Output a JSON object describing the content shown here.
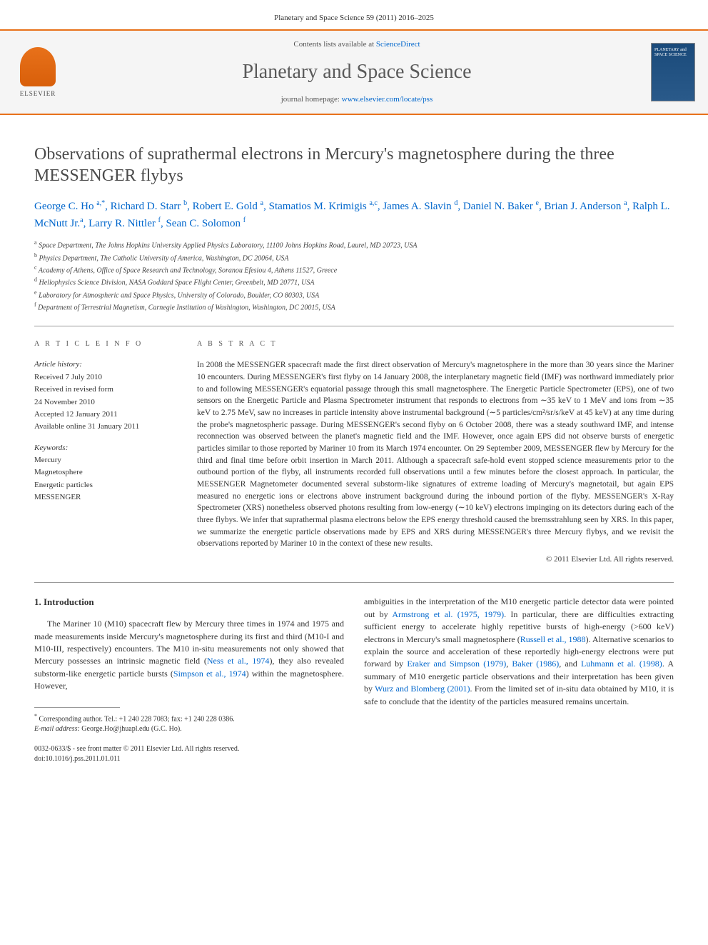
{
  "header": {
    "citation": "Planetary and Space Science 59 (2011) 2016–2025"
  },
  "banner": {
    "publisher_name": "ELSEVIER",
    "contents_prefix": "Contents lists available at ",
    "contents_link": "ScienceDirect",
    "journal_name": "Planetary and Space Science",
    "homepage_prefix": "journal homepage: ",
    "homepage_url": "www.elsevier.com/locate/pss",
    "cover_text": "PLANETARY and SPACE SCIENCE"
  },
  "article": {
    "title": "Observations of suprathermal electrons in Mercury's magnetosphere during the three MESSENGER flybys",
    "authors_html": "George C. Ho <sup>a,*</sup>, Richard D. Starr <sup>b</sup>, Robert E. Gold <sup>a</sup>, Stamatios M. Krimigis <sup>a,c</sup>, James A. Slavin <sup>d</sup>, Daniel N. Baker <sup>e</sup>, Brian J. Anderson <sup>a</sup>, Ralph L. McNutt Jr.<sup>a</sup>, Larry R. Nittler <sup>f</sup>, Sean C. Solomon <sup>f</sup>",
    "affiliations": [
      {
        "sup": "a",
        "text": "Space Department, The Johns Hopkins University Applied Physics Laboratory, 11100 Johns Hopkins Road, Laurel, MD 20723, USA"
      },
      {
        "sup": "b",
        "text": "Physics Department, The Catholic University of America, Washington, DC 20064, USA"
      },
      {
        "sup": "c",
        "text": "Academy of Athens, Office of Space Research and Technology, Soranou Efesiou 4, Athens 11527, Greece"
      },
      {
        "sup": "d",
        "text": "Heliophysics Science Division, NASA Goddard Space Flight Center, Greenbelt, MD 20771, USA"
      },
      {
        "sup": "e",
        "text": "Laboratory for Atmospheric and Space Physics, University of Colorado, Boulder, CO 80303, USA"
      },
      {
        "sup": "f",
        "text": "Department of Terrestrial Magnetism, Carnegie Institution of Washington, Washington, DC 20015, USA"
      }
    ]
  },
  "info": {
    "heading": "A R T I C L E  I N F O",
    "history_label": "Article history:",
    "history": [
      "Received 7 July 2010",
      "Received in revised form",
      "24 November 2010",
      "Accepted 12 January 2011",
      "Available online 31 January 2011"
    ],
    "keywords_label": "Keywords:",
    "keywords": [
      "Mercury",
      "Magnetosphere",
      "Energetic particles",
      "MESSENGER"
    ]
  },
  "abstract": {
    "heading": "A B S T R A C T",
    "text": "In 2008 the MESSENGER spacecraft made the first direct observation of Mercury's magnetosphere in the more than 30 years since the Mariner 10 encounters. During MESSENGER's first flyby on 14 January 2008, the interplanetary magnetic field (IMF) was northward immediately prior to and following MESSENGER's equatorial passage through this small magnetosphere. The Energetic Particle Spectrometer (EPS), one of two sensors on the Energetic Particle and Plasma Spectrometer instrument that responds to electrons from ∼35 keV to 1 MeV and ions from ∼35 keV to 2.75 MeV, saw no increases in particle intensity above instrumental background (∼5 particles/cm²/sr/s/keV at 45 keV) at any time during the probe's magnetospheric passage. During MESSENGER's second flyby on 6 October 2008, there was a steady southward IMF, and intense reconnection was observed between the planet's magnetic field and the IMF. However, once again EPS did not observe bursts of energetic particles similar to those reported by Mariner 10 from its March 1974 encounter. On 29 September 2009, MESSENGER flew by Mercury for the third and final time before orbit insertion in March 2011. Although a spacecraft safe-hold event stopped science measurements prior to the outbound portion of the flyby, all instruments recorded full observations until a few minutes before the closest approach. In particular, the MESSENGER Magnetometer documented several substorm-like signatures of extreme loading of Mercury's magnetotail, but again EPS measured no energetic ions or electrons above instrument background during the inbound portion of the flyby. MESSENGER's X-Ray Spectrometer (XRS) nonetheless observed photons resulting from low-energy (∼10 keV) electrons impinging on its detectors during each of the three flybys. We infer that suprathermal plasma electrons below the EPS energy threshold caused the bremsstrahlung seen by XRS. In this paper, we summarize the energetic particle observations made by EPS and XRS during MESSENGER's three Mercury flybys, and we revisit the observations reported by Mariner 10 in the context of these new results.",
    "copyright": "© 2011 Elsevier Ltd. All rights reserved."
  },
  "body": {
    "section_heading": "1. Introduction",
    "col1_p1_pre": "The Mariner 10 (M10) spacecraft flew by Mercury three times in 1974 and 1975 and made measurements inside Mercury's magnetosphere during its first and third (M10-I and M10-III, respectively) encounters. The M10 in-situ measurements not only showed that Mercury possesses an intrinsic magnetic field (",
    "ref1": "Ness et al., 1974",
    "col1_p1_mid": "), they also revealed substorm-like energetic particle bursts (",
    "ref2": "Simpson et al., 1974",
    "col1_p1_post": ") within the magnetosphere. However,",
    "col2_p1_pre": "ambiguities in the interpretation of the M10 energetic particle detector data were pointed out by ",
    "ref3": "Armstrong et al. (1975, 1979)",
    "col2_p1_mid1": ". In particular, there are difficulties extracting sufficient energy to accelerate highly repetitive bursts of high-energy (>600 keV) electrons in Mercury's small magnetosphere (",
    "ref4": "Russell et al., 1988",
    "col2_p1_mid2": "). Alternative scenarios to explain the source and acceleration of these reportedly high-energy electrons were put forward by ",
    "ref5": "Eraker and Simpson (1979)",
    "col2_sep1": ", ",
    "ref6": "Baker (1986)",
    "col2_sep2": ", and ",
    "ref7": "Luhmann et al. (1998)",
    "col2_p1_mid3": ". A summary of M10 energetic particle observations and their interpretation has been given by ",
    "ref8": "Wurz and Blomberg (2001)",
    "col2_p1_post": ". From the limited set of in-situ data obtained by M10, it is safe to conclude that the identity of the particles measured remains uncertain."
  },
  "footnote": {
    "marker": "*",
    "label": "Corresponding author. Tel.: +1 240 228 7083; fax: +1 240 228 0386.",
    "email_label": "E-mail address:",
    "email": "George.Ho@jhuapl.edu (G.C. Ho).",
    "issn_line": "0032-0633/$ - see front matter © 2011 Elsevier Ltd. All rights reserved.",
    "doi_line": "doi:10.1016/j.pss.2011.01.011"
  },
  "colors": {
    "accent": "#e8711a",
    "link": "#0066cc",
    "text": "#333333",
    "banner_bg": "#f5f5f5",
    "cover_bg": "#1a4a7a"
  }
}
